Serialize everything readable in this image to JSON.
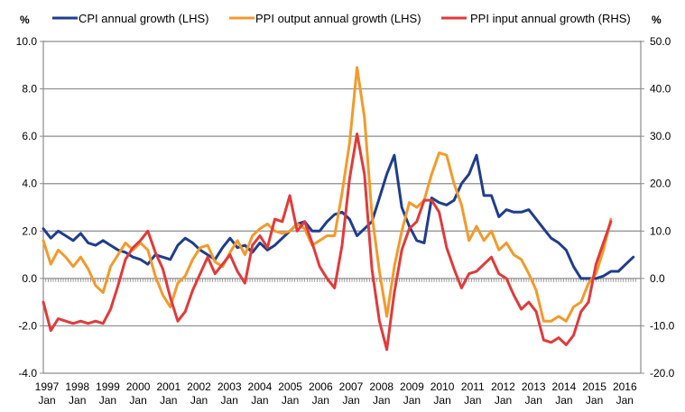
{
  "chart_data": {
    "type": "line",
    "title": "",
    "left_axis": {
      "unit_label": "%",
      "ylim": [
        -4.0,
        10.0
      ],
      "ticks": [
        "10.0",
        "8.0",
        "6.0",
        "4.0",
        "2.0",
        "0.0",
        "-2.0",
        "-4.0"
      ],
      "tick_values": [
        10,
        8,
        6,
        4,
        2,
        0,
        -2,
        -4
      ]
    },
    "right_axis": {
      "unit_label": "%",
      "ylim": [
        -20.0,
        50.0
      ],
      "ticks": [
        "50.0",
        "40.0",
        "30.0",
        "20.0",
        "10.0",
        "0.0",
        "-10.0",
        "-20.0"
      ],
      "tick_values": [
        50,
        40,
        30,
        20,
        10,
        0,
        -10,
        -20
      ]
    },
    "x_axis": {
      "start": "1997 Jan",
      "end": "2016 Oct",
      "frequency": "quarterly",
      "tick_years": [
        "1997",
        "1998",
        "1999",
        "2000",
        "2001",
        "2002",
        "2003",
        "2004",
        "2005",
        "2006",
        "2007",
        "2008",
        "2009",
        "2010",
        "2011",
        "2012",
        "2013",
        "2014",
        "2015",
        "2016"
      ],
      "tick_month": "Jan"
    },
    "grid": "horizontal",
    "legend_position": "top",
    "series": [
      {
        "name": "CPI annual  growth (LHS)",
        "axis": "left",
        "color": "#1f3d8f",
        "values": [
          2.1,
          1.7,
          2.0,
          1.8,
          1.6,
          1.9,
          1.5,
          1.4,
          1.6,
          1.4,
          1.2,
          1.1,
          0.9,
          0.8,
          0.6,
          1.0,
          0.9,
          0.8,
          1.4,
          1.7,
          1.5,
          1.2,
          1.0,
          0.8,
          1.3,
          1.7,
          1.3,
          1.4,
          1.1,
          1.5,
          1.2,
          1.4,
          1.7,
          2.0,
          2.3,
          2.4,
          2.0,
          2.0,
          2.4,
          2.7,
          2.8,
          2.5,
          1.8,
          2.1,
          2.4,
          3.4,
          4.4,
          5.2,
          3.0,
          2.2,
          1.6,
          1.5,
          3.4,
          3.2,
          3.1,
          3.3,
          4.0,
          4.4,
          5.2,
          3.5,
          3.5,
          2.6,
          2.9,
          2.8,
          2.8,
          2.9,
          2.5,
          2.1,
          1.7,
          1.5,
          1.2,
          0.5,
          0.0,
          0.0,
          0.0,
          0.1,
          0.3,
          0.3,
          0.6,
          0.9
        ]
      },
      {
        "name": "PPI output annual  growth (LHS)",
        "axis": "left",
        "color": "#f39a2b",
        "values": [
          1.6,
          0.6,
          1.2,
          0.9,
          0.5,
          0.9,
          0.4,
          -0.3,
          -0.6,
          0.5,
          1.0,
          1.5,
          1.2,
          1.5,
          1.2,
          0.1,
          -0.7,
          -1.2,
          -0.2,
          0.1,
          0.8,
          1.3,
          1.4,
          0.7,
          0.5,
          1.1,
          1.6,
          1.0,
          1.8,
          2.1,
          2.3,
          2.0,
          1.9,
          2.0,
          2.3,
          2.1,
          1.4,
          1.6,
          1.8,
          1.8,
          3.6,
          5.7,
          8.9,
          6.8,
          2.7,
          0.3,
          -1.6,
          0.5,
          2.0,
          3.2,
          3.0,
          3.3,
          4.4,
          5.3,
          5.2,
          4.0,
          3.1,
          1.6,
          2.2,
          1.6,
          2.0,
          1.2,
          1.5,
          1.0,
          0.8,
          0.2,
          -0.5,
          -1.8,
          -1.8,
          -1.6,
          -1.8,
          -1.2,
          -1.0,
          -0.2,
          0.2,
          1.2,
          2.5
        ]
      },
      {
        "name": "PPI input annual  growth (RHS)",
        "axis": "right",
        "color": "#e23a3a",
        "values": [
          -5.0,
          -11.0,
          -8.5,
          -9.0,
          -9.5,
          -9.0,
          -9.5,
          -9.0,
          -9.5,
          -6.5,
          -1.5,
          4.0,
          6.5,
          8.0,
          10.0,
          5.5,
          2.0,
          -4.0,
          -9.0,
          -7.0,
          -2.5,
          1.0,
          4.5,
          1.0,
          3.0,
          5.0,
          1.5,
          -1.0,
          7.0,
          9.0,
          6.5,
          12.5,
          12.0,
          17.5,
          10.0,
          12.0,
          7.5,
          2.5,
          0.0,
          -2.0,
          7.0,
          21.0,
          30.5,
          22.0,
          2.0,
          -9.0,
          -15.0,
          -3.0,
          6.0,
          10.5,
          12.0,
          16.5,
          16.5,
          14.0,
          6.5,
          2.0,
          -2.0,
          1.0,
          1.5,
          3.0,
          4.5,
          1.0,
          0.0,
          -3.5,
          -6.5,
          -5.0,
          -7.0,
          -13.0,
          -13.5,
          -12.5,
          -14.0,
          -12.0,
          -7.0,
          -5.0,
          3.0,
          7.5,
          12.0
        ]
      }
    ]
  }
}
